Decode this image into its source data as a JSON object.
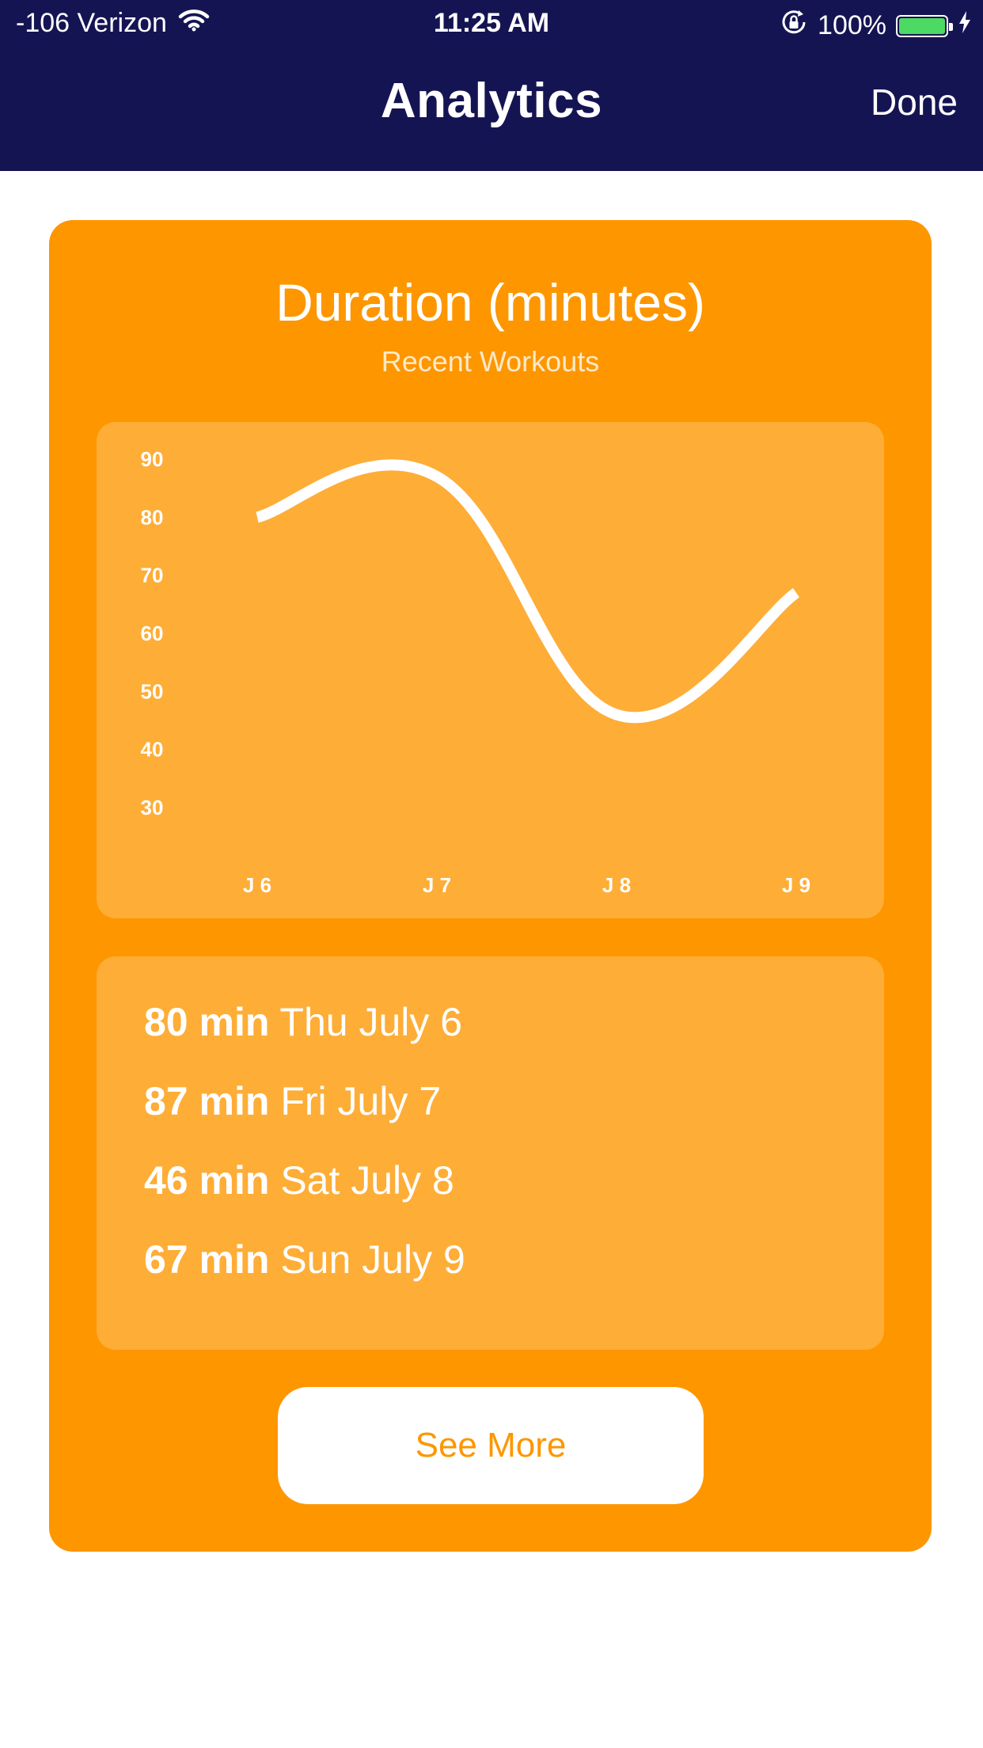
{
  "status_bar": {
    "carrier": "-106 Verizon",
    "time": "11:25 AM",
    "battery_percent": "100%",
    "battery_color": "#4cd964",
    "battery_level": 1.0
  },
  "nav": {
    "title": "Analytics",
    "done_label": "Done",
    "background": "#151453"
  },
  "card": {
    "title": "Duration (minutes)",
    "subtitle": "Recent Workouts",
    "accent": "#fe9600"
  },
  "chart_data": {
    "type": "line",
    "title": "Duration (minutes)",
    "subtitle": "Recent Workouts",
    "categories": [
      "J 6",
      "J 7",
      "J 8",
      "J 9"
    ],
    "series": [
      {
        "values": [
          80,
          87,
          46,
          67
        ]
      }
    ],
    "y_ticks": [
      "90",
      "80",
      "70",
      "60",
      "50",
      "40",
      "30"
    ],
    "ylim": [
      30,
      90
    ],
    "grid": false,
    "legend": "none",
    "line_color": "#ffffff"
  },
  "workouts": [
    {
      "value": "80 min",
      "date": "Thu July 6"
    },
    {
      "value": "87 min",
      "date": "Fri July 7"
    },
    {
      "value": "46 min",
      "date": "Sat July 8"
    },
    {
      "value": "67 min",
      "date": "Sun July 9"
    }
  ],
  "see_more_label": "See More",
  "icons": [
    "wifi-icon",
    "rotation-lock-icon",
    "battery-icon",
    "charging-bolt-icon"
  ]
}
